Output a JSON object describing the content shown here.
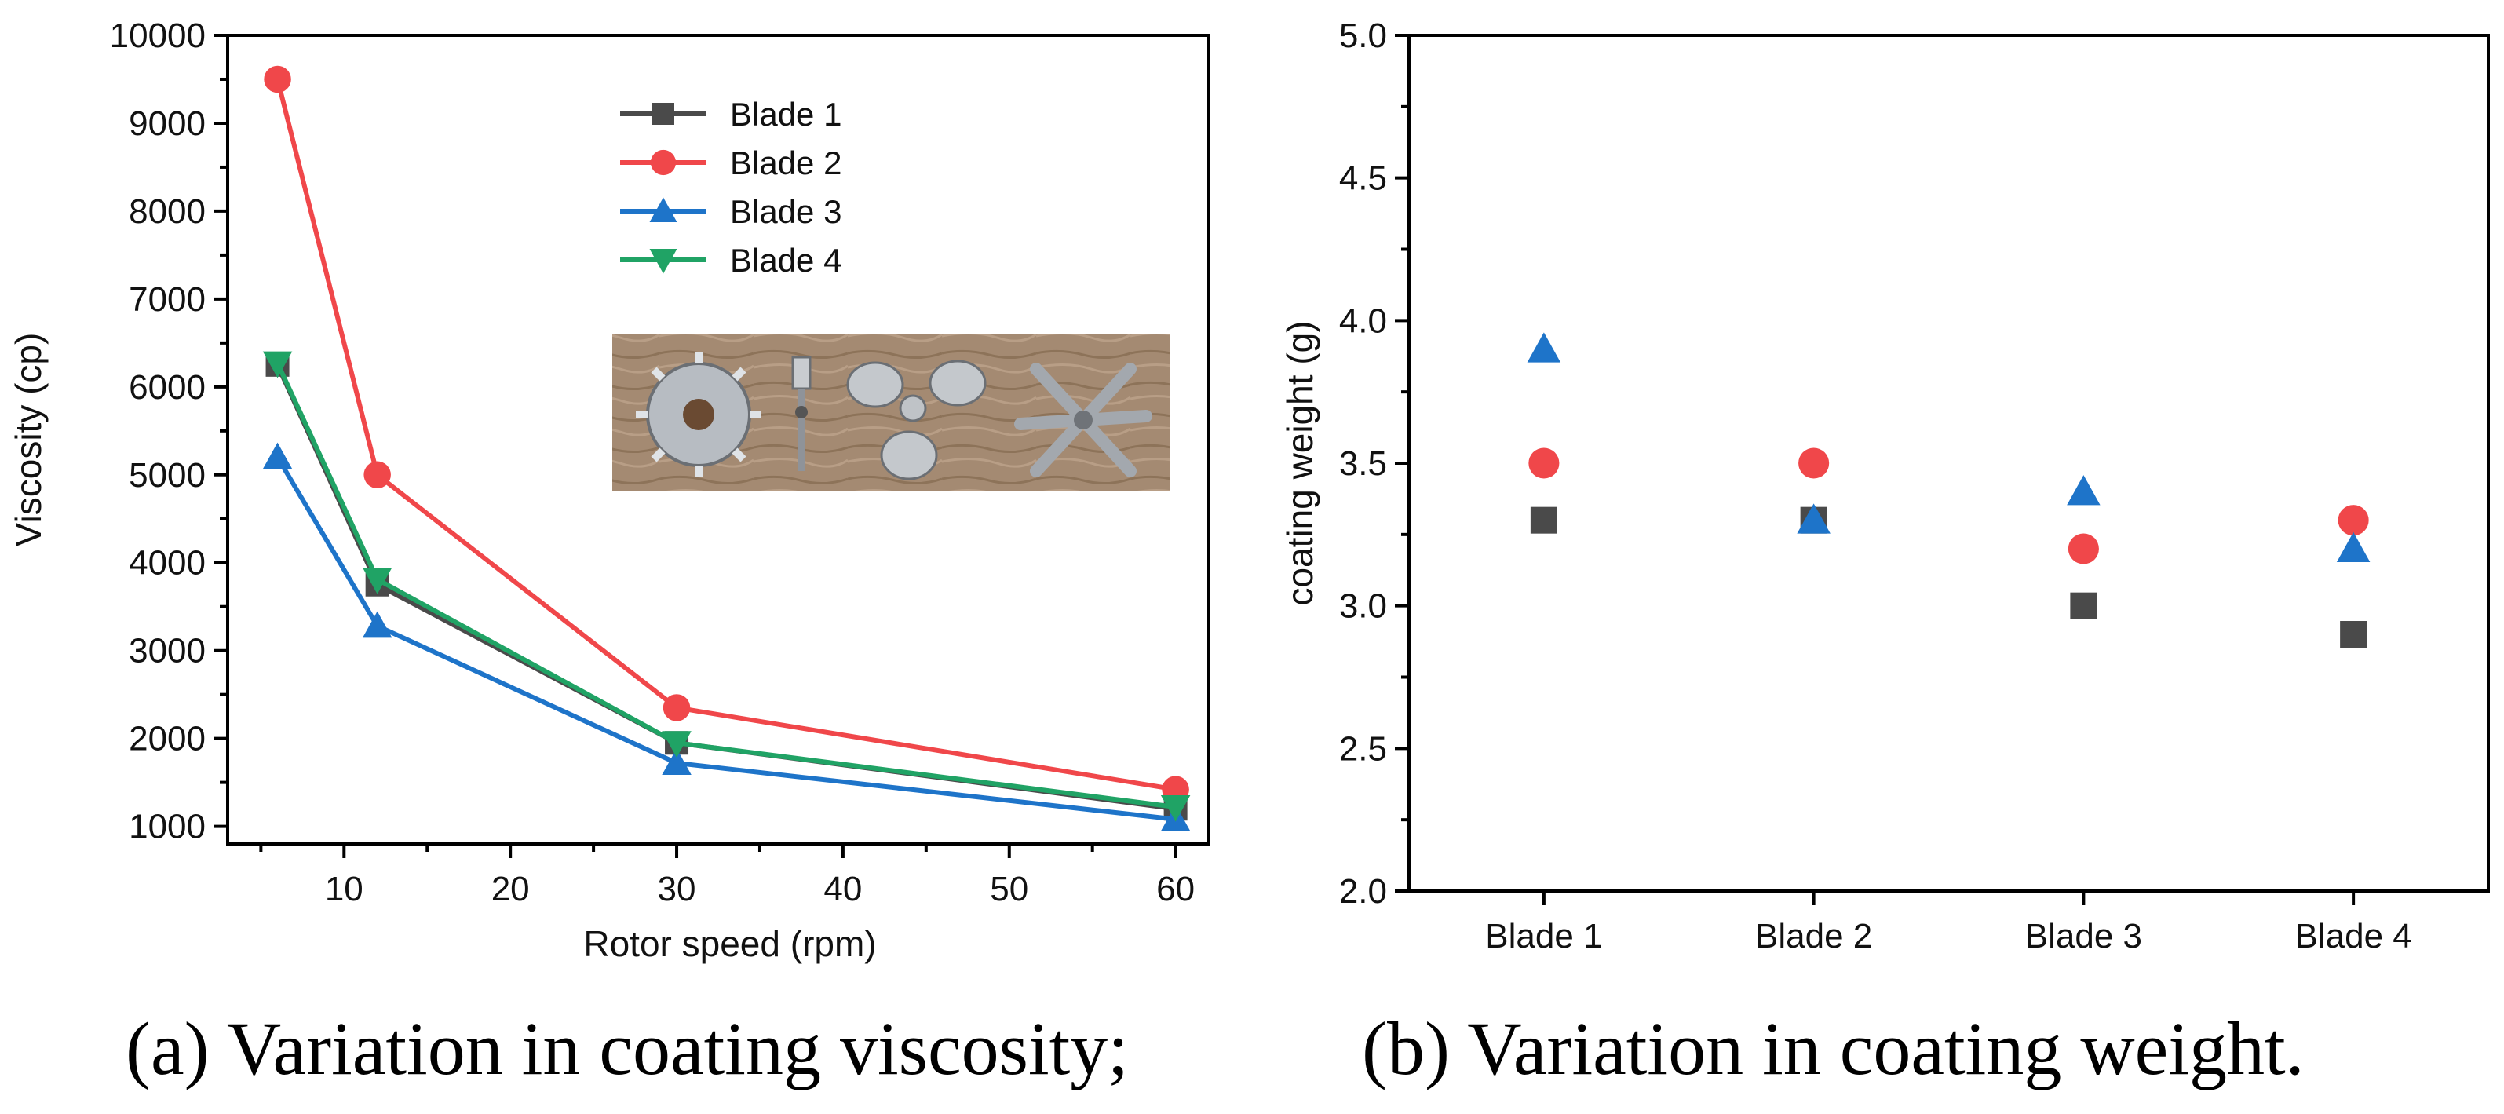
{
  "colors": {
    "blade1": "#4a4a4a",
    "blade2": "#f0474a",
    "blade3": "#1e74c9",
    "blade4": "#20a365",
    "axis": "#000000",
    "inset_bg": "#a48a72"
  },
  "captions": {
    "a": "(a) Variation in coating viscosity;",
    "b": "(b) Variation in coating weight."
  },
  "chart_data": [
    {
      "type": "line",
      "title": "",
      "xlabel": "Rotor speed (rpm)",
      "ylabel": "Viscosity (cp)",
      "xlim": [
        3,
        62
      ],
      "ylim": [
        800,
        10000
      ],
      "xticks": [
        "10",
        "20",
        "30",
        "40",
        "50",
        "60"
      ],
      "yticks": [
        "1000",
        "2000",
        "3000",
        "4000",
        "5000",
        "6000",
        "7000",
        "8000",
        "9000",
        "10000"
      ],
      "legend_position": "top-right",
      "x": [
        6,
        12,
        30,
        60
      ],
      "series": [
        {
          "name": "Blade 1",
          "marker": "square",
          "values": [
            6250,
            3750,
            1950,
            1200
          ]
        },
        {
          "name": "Blade 2",
          "marker": "circle",
          "values": [
            9500,
            5000,
            2350,
            1420
          ]
        },
        {
          "name": "Blade 3",
          "marker": "triangle-up",
          "values": [
            5200,
            3280,
            1720,
            1080
          ]
        },
        {
          "name": "Blade 4",
          "marker": "triangle-down",
          "values": [
            6270,
            3810,
            1950,
            1220
          ]
        }
      ],
      "inset_image": "photo-of-four-mixing-blades"
    },
    {
      "type": "scatter",
      "title": "",
      "xlabel": "",
      "ylabel": "coating weight (g)",
      "ylim": [
        2.0,
        5.0
      ],
      "yticks": [
        "2.0",
        "2.5",
        "3.0",
        "3.5",
        "4.0",
        "4.5",
        "5.0"
      ],
      "categories": [
        "Blade 1",
        "Blade 2",
        "Blade 3",
        "Blade 4"
      ],
      "series": [
        {
          "marker": "square",
          "color_key": "blade1",
          "values": [
            3.3,
            3.3,
            3.0,
            2.9
          ]
        },
        {
          "marker": "circle",
          "color_key": "blade2",
          "values": [
            3.5,
            3.5,
            3.2,
            3.3
          ]
        },
        {
          "marker": "triangle-up",
          "color_key": "blade3",
          "values": [
            3.9,
            3.3,
            3.4,
            3.2
          ]
        }
      ]
    }
  ]
}
